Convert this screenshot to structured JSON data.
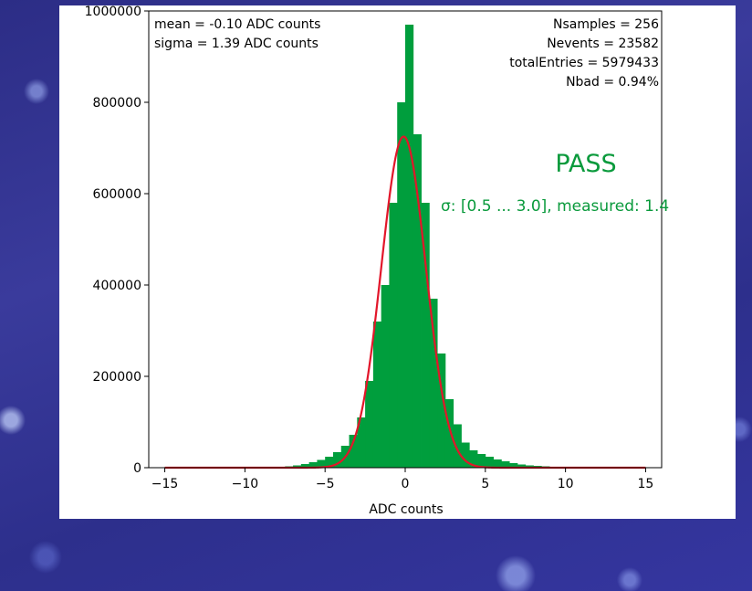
{
  "chart_data": {
    "type": "bar",
    "xlabel": "ADC counts",
    "ylabel": "",
    "xlim": [
      -16,
      16
    ],
    "ylim": [
      0,
      1000000
    ],
    "x_ticks": [
      -15,
      -10,
      -5,
      0,
      5,
      10,
      15
    ],
    "y_ticks": [
      0,
      200000,
      400000,
      600000,
      800000,
      1000000
    ],
    "x_tick_labels": [
      "−15",
      "−10",
      "−5",
      "0",
      "5",
      "10",
      "15"
    ],
    "y_tick_labels": [
      "0",
      "200000",
      "400000",
      "600000",
      "800000",
      "1000000"
    ],
    "bin_width": 0.5,
    "bin_starts": [
      -8,
      -7.5,
      -7,
      -6.5,
      -6,
      -5.5,
      -5,
      -4.5,
      -4,
      -3.5,
      -3,
      -2.5,
      -2,
      -1.5,
      -1,
      -0.5,
      0,
      0.5,
      1,
      1.5,
      2,
      2.5,
      3,
      3.5,
      4,
      4.5,
      5,
      5.5,
      6,
      6.5,
      7,
      7.5,
      8,
      8.5,
      9,
      9.5
    ],
    "values": [
      2000,
      3000,
      5000,
      8000,
      12000,
      17000,
      24000,
      34000,
      48000,
      72000,
      110000,
      190000,
      320000,
      400000,
      580000,
      800000,
      970000,
      730000,
      580000,
      370000,
      250000,
      150000,
      95000,
      55000,
      38000,
      30000,
      24000,
      18000,
      14000,
      10000,
      7000,
      5000,
      4000,
      3000,
      2000,
      1000
    ],
    "series": [
      {
        "type": "histogram",
        "color": "#009e3d"
      },
      {
        "type": "gaussian-fit",
        "color": "#e2162a",
        "mean": -0.1,
        "sigma": 1.39,
        "peak": 725000
      }
    ],
    "stats_left": [
      "mean = -0.10 ADC counts",
      "sigma = 1.39 ADC counts"
    ],
    "stats_right": [
      "Nsamples = 256",
      "Nevents = 23582",
      "totalEntries = 5979433",
      "Nbad = 0.94%"
    ],
    "status": "PASS",
    "criterion": "σ: [0.5 ... 3.0], measured: 1.4",
    "colors": {
      "status": "#0a9a3c",
      "fit": "#e2162a",
      "bars": "#009e3d"
    }
  }
}
